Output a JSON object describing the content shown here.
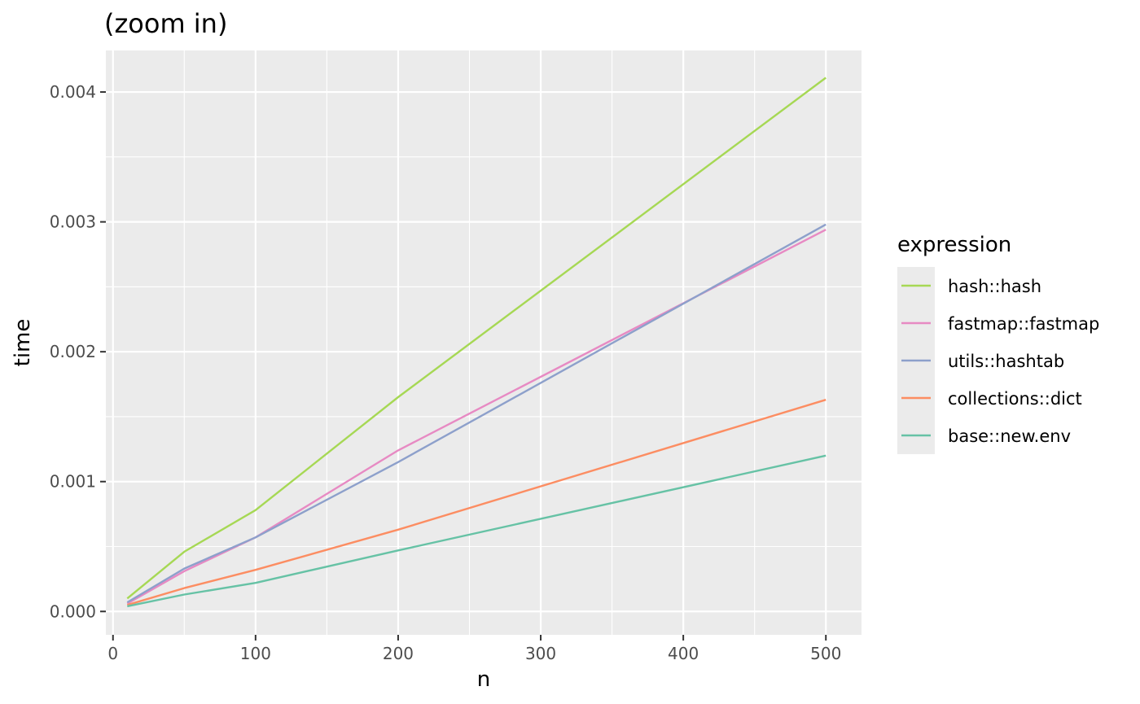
{
  "chart_data": {
    "type": "line",
    "title": "(zoom in)",
    "xlabel": "n",
    "ylabel": "time",
    "xlim": [
      -5,
      525
    ],
    "ylim": [
      -0.00018,
      0.00432
    ],
    "x_ticks": [
      0,
      100,
      200,
      300,
      400,
      500
    ],
    "x_tick_labels": [
      "0",
      "100",
      "200",
      "300",
      "400",
      "500"
    ],
    "x_minor_ticks": [
      50,
      150,
      250,
      350,
      450
    ],
    "y_ticks": [
      0,
      0.001,
      0.002,
      0.003,
      0.004
    ],
    "y_tick_labels": [
      "0.000",
      "0.001",
      "0.002",
      "0.003",
      "0.004"
    ],
    "y_minor_ticks": [
      0.0005,
      0.0015,
      0.0025,
      0.0035
    ],
    "grid": true,
    "legend_title": "expression",
    "legend_position": "right",
    "x": [
      10,
      50,
      100,
      200,
      500
    ],
    "series": [
      {
        "name": "hash::hash",
        "color": "#a6d854",
        "values": [
          0.0001,
          0.00046,
          0.00078,
          0.00165,
          0.00411
        ]
      },
      {
        "name": "fastmap::fastmap",
        "color": "#e78ac3",
        "values": [
          6e-05,
          0.00031,
          0.00057,
          0.00124,
          0.00294
        ]
      },
      {
        "name": "utils::hashtab",
        "color": "#8da0cb",
        "values": [
          7e-05,
          0.00033,
          0.00057,
          0.00115,
          0.00298
        ]
      },
      {
        "name": "collections::dict",
        "color": "#fc8d62",
        "values": [
          5e-05,
          0.00018,
          0.00032,
          0.00063,
          0.00163
        ]
      },
      {
        "name": "base::new.env",
        "color": "#66c2a5",
        "values": [
          4e-05,
          0.00013,
          0.00022,
          0.00047,
          0.0012
        ]
      }
    ]
  }
}
